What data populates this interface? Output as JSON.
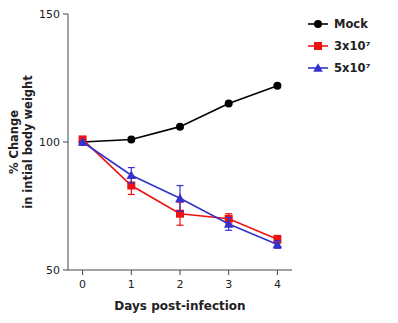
{
  "chart_data": {
    "type": "line",
    "xlabel": "Days post-infection",
    "ylabel": "% Change\nin intial body weight",
    "x": [
      0,
      1,
      2,
      3,
      4
    ],
    "series": [
      {
        "name": "Mock",
        "color": "#000000",
        "marker": "circle",
        "line_style": "solid",
        "values": [
          100,
          101,
          106,
          115,
          122
        ]
      },
      {
        "name": "3x10⁷",
        "color": "#EE1111",
        "marker": "square",
        "line_style": "solid",
        "values": [
          101,
          83,
          72,
          70,
          62
        ],
        "errors": [
          0,
          3.5,
          4.5,
          2.0,
          1.5
        ]
      },
      {
        "name": "5x10⁷",
        "color": "#3333CC",
        "marker": "triangle",
        "line_style": "solid",
        "values": [
          100,
          87,
          78,
          68,
          60
        ],
        "errors": [
          0,
          3.0,
          5.0,
          2.5,
          1.5
        ]
      }
    ],
    "xlim": [
      -0.3,
      4.3
    ],
    "ylim": [
      50,
      150
    ],
    "xticks": [
      0,
      1,
      2,
      3,
      4
    ],
    "yticks": [
      50,
      100,
      150
    ],
    "grid": false,
    "legend": "right"
  }
}
